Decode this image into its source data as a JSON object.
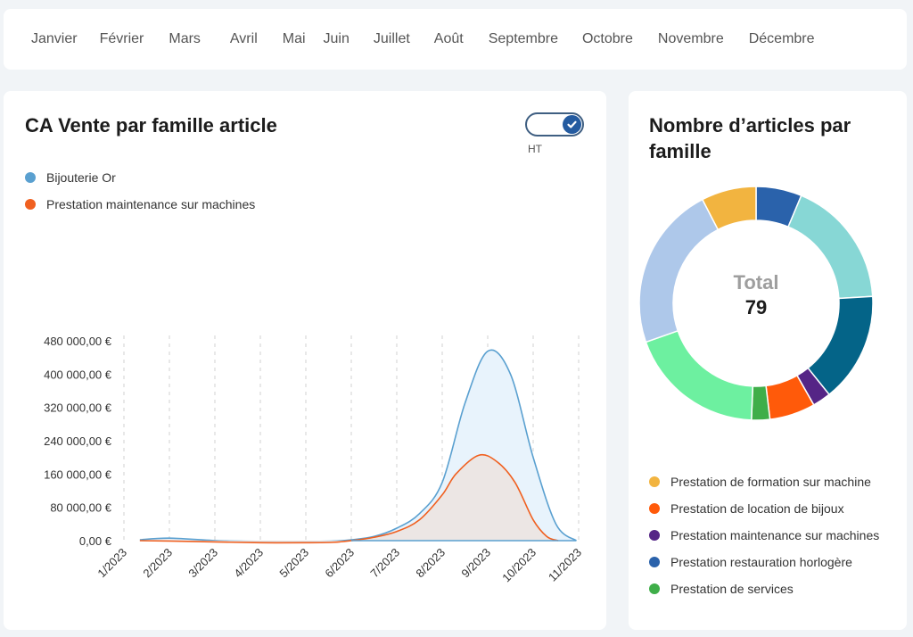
{
  "months_bar": {
    "items": [
      "Janvier",
      "Février",
      "Mars",
      "Avril",
      "Mai",
      "Juin",
      "Juillet",
      "Août",
      "Septembre",
      "Octobre",
      "Novembre",
      "Décembre"
    ]
  },
  "ca_card": {
    "title": "CA Vente par famille article",
    "toggle": {
      "label": "HT",
      "checked": true
    }
  },
  "pie_card": {
    "title": "Nombre d’articles par famille",
    "total_label": "Total",
    "total_value": "79",
    "legend": [
      {
        "label": "Prestation de formation sur machine",
        "color": "#f2b440"
      },
      {
        "label": "Prestation de location de bijoux",
        "color": "#ff5a0a"
      },
      {
        "label": "Prestation maintenance sur machines",
        "color": "#552586"
      },
      {
        "label": "Prestation restauration horlogère",
        "color": "#2a62ab"
      },
      {
        "label": "Prestation de services",
        "color": "#3fae49"
      }
    ]
  },
  "chart_data": [
    {
      "type": "area",
      "title": "CA Vente par famille article",
      "xlabel": "",
      "ylabel": "",
      "x_ticks": [
        "1/2023",
        "2/2023",
        "3/2023",
        "4/2023",
        "5/2023",
        "6/2023",
        "7/2023",
        "8/2023",
        "9/2023",
        "10/2023",
        "11/2023"
      ],
      "y_ticks": [
        "0,00 €",
        "80 000,00 €",
        "160 000,00 €",
        "240 000,00 €",
        "320 000,00 €",
        "400 000,00 €",
        "480 000,00 €"
      ],
      "ylim": [
        0,
        480000
      ],
      "xlim": [
        1,
        11
      ],
      "grid": "vertical-dashed",
      "legend_position": "top-left",
      "series": [
        {
          "name": "Bijouterie Or",
          "color": "#5aa0d0",
          "fill": "#e8f3fc",
          "x": [
            1.35,
            2,
            3.05,
            4.4,
            5,
            5.6,
            6,
            6.5,
            7,
            7.5,
            8,
            8.5,
            9,
            9.5,
            10,
            10.5,
            10.95
          ],
          "values": [
            2000,
            6000,
            0,
            -2000,
            -2000,
            -1000,
            2000,
            10000,
            30000,
            65000,
            140000,
            330000,
            455000,
            400000,
            200000,
            40000,
            0
          ]
        },
        {
          "name": "Prestation maintenance sur machines",
          "color": "#f06020",
          "fill": "#ece4e1",
          "x": [
            1.35,
            2,
            3,
            4,
            5,
            5.6,
            6,
            6.5,
            7,
            7.5,
            8,
            8.3,
            8.8,
            9.2,
            9.6,
            10,
            10.3,
            10.55
          ],
          "values": [
            0,
            -1000,
            -3000,
            -5000,
            -5000,
            -4000,
            0,
            8000,
            22000,
            50000,
            110000,
            160000,
            205000,
            190000,
            140000,
            50000,
            10000,
            0
          ]
        }
      ]
    },
    {
      "type": "pie",
      "title": "Nombre d’articles par famille",
      "donut": true,
      "total": 79,
      "slices": [
        {
          "label": "Prestation restauration horlogère",
          "value": 5,
          "color": "#2a62ab"
        },
        {
          "label": "",
          "value": 14,
          "color": "#87d7d5"
        },
        {
          "label": "",
          "value": 12,
          "color": "#046488"
        },
        {
          "label": "Prestation maintenance sur machines",
          "value": 2,
          "color": "#552586"
        },
        {
          "label": "Prestation de location de bijoux",
          "value": 5,
          "color": "#ff5a0a"
        },
        {
          "label": "Prestation de services",
          "value": 2,
          "color": "#3fae49"
        },
        {
          "label": "",
          "value": 15,
          "color": "#6df0a0"
        },
        {
          "label": "",
          "value": 18,
          "color": "#aec8ea"
        },
        {
          "label": "Prestation de formation sur machine",
          "value": 6,
          "color": "#f2b440"
        }
      ]
    }
  ]
}
